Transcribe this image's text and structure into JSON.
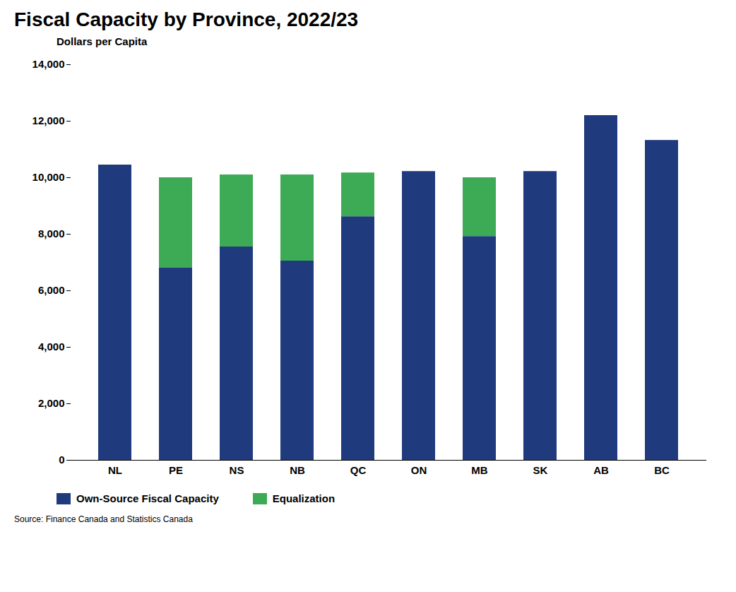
{
  "chart_data": {
    "type": "bar",
    "stacked": true,
    "title": "Fiscal Capacity by Province, 2022/23",
    "subtitle": "Dollars per Capita",
    "source": "Source: Finance Canada and Statistics Canada",
    "categories": [
      "NL",
      "PE",
      "NS",
      "NB",
      "QC",
      "ON",
      "MB",
      "SK",
      "AB",
      "BC"
    ],
    "series": [
      {
        "name": "Own-Source Fiscal Capacity",
        "color": "#1F3A7D",
        "values": [
          10450,
          6800,
          7550,
          7050,
          8620,
          10220,
          7920,
          10220,
          12200,
          11320
        ]
      },
      {
        "name": "Equalization",
        "color": "#3DAA55",
        "values": [
          0,
          3200,
          2550,
          3050,
          1550,
          0,
          2080,
          0,
          0,
          0
        ]
      }
    ],
    "ylim": [
      0,
      14000
    ],
    "yticks": [
      0,
      {
        "value": 2000,
        "label": "2,000"
      },
      {
        "value": 4000,
        "label": "4,000"
      },
      {
        "value": 6000,
        "label": "6,000"
      },
      {
        "value": 8000,
        "label": "8,000"
      },
      {
        "value": 10000,
        "label": "10,000"
      },
      {
        "value": 12000,
        "label": "12,000"
      },
      {
        "value": 14000,
        "label": "14,000"
      }
    ],
    "grid": false,
    "legend": "bottom"
  }
}
